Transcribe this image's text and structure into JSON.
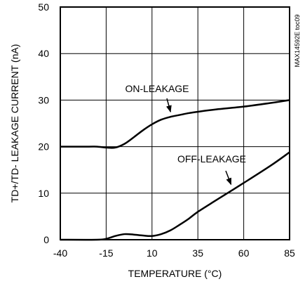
{
  "chart_data": {
    "type": "line",
    "title": "",
    "xlabel": "TEMPERATURE (°C)",
    "ylabel": "TD+/TD- LEAKAGE CURRENT (nA)",
    "xlim": [
      -40,
      85
    ],
    "ylim": [
      0,
      50
    ],
    "x_ticks": [
      -40,
      -15,
      10,
      35,
      60,
      85
    ],
    "y_ticks": [
      0,
      10,
      20,
      30,
      40,
      50
    ],
    "grid": true,
    "tag": "MAX14592E toc09",
    "series": [
      {
        "name": "ON-LEAKAGE",
        "x": [
          -40,
          -25,
          -20,
          -15,
          -10,
          -5,
          0,
          5,
          10,
          15,
          20,
          25,
          30,
          35,
          45,
          60,
          75,
          85
        ],
        "y": [
          20,
          20,
          20,
          19.8,
          19.8,
          20.6,
          22,
          23.5,
          24.8,
          25.8,
          26.4,
          26.8,
          27.2,
          27.5,
          28,
          28.6,
          29.4,
          30
        ]
      },
      {
        "name": "OFF-LEAKAGE",
        "x": [
          -40,
          -20,
          -15,
          -10,
          -5,
          0,
          5,
          10,
          15,
          20,
          25,
          30,
          35,
          45,
          60,
          75,
          85
        ],
        "y": [
          0,
          0,
          0.2,
          0.8,
          1.2,
          1.1,
          0.9,
          0.8,
          1.2,
          2,
          3.2,
          4.5,
          6,
          8.5,
          12.2,
          16,
          18.8
        ]
      }
    ],
    "annotations": [
      {
        "text": "ON-LEAKAGE",
        "target_series": "ON-LEAKAGE",
        "at_x": 22
      },
      {
        "text": "OFF-LEAKAGE",
        "target_series": "OFF-LEAKAGE",
        "at_x": 55
      }
    ]
  }
}
